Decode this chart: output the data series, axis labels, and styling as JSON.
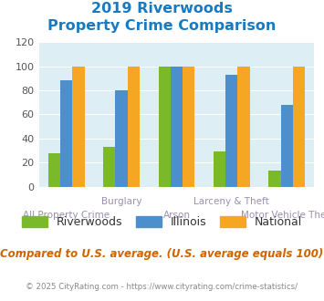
{
  "title_line1": "2019 Riverwoods",
  "title_line2": "Property Crime Comparison",
  "title_color": "#1a7abf",
  "x_labels_top": {
    "1": "Burglary",
    "3": "Larceny & Theft"
  },
  "x_labels_bottom": {
    "0": "All Property Crime",
    "2": "Arson",
    "4": "Motor Vehicle Theft"
  },
  "riverwoods": [
    28,
    33,
    100,
    29,
    13
  ],
  "illinois": [
    88,
    80,
    100,
    93,
    68
  ],
  "national": [
    100,
    100,
    100,
    100,
    100
  ],
  "riverwoods_color": "#7aba2a",
  "illinois_color": "#4d8fcc",
  "national_color": "#f5a623",
  "ylim": [
    0,
    120
  ],
  "yticks": [
    0,
    20,
    40,
    60,
    80,
    100,
    120
  ],
  "plot_bg_color": "#ddeef5",
  "footer_text": "Compared to U.S. average. (U.S. average equals 100)",
  "footer_color": "#cc6600",
  "copyright_text": "© 2025 CityRating.com - https://www.cityrating.com/crime-statistics/",
  "copyright_color": "#888888",
  "bar_width": 0.22,
  "legend_labels": [
    "Riverwoods",
    "Illinois",
    "National"
  ],
  "label_color": "#9b8fb0"
}
